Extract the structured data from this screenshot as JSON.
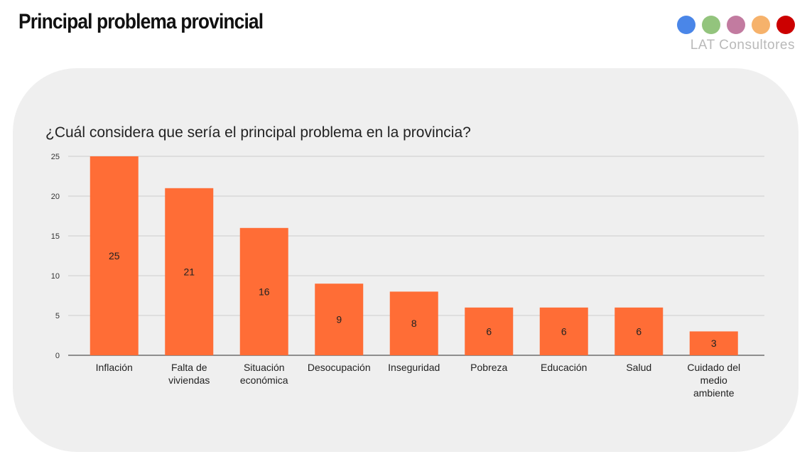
{
  "header": {
    "title": "Principal problema provincial"
  },
  "brand": {
    "name": "LAT Consultores",
    "dot_colors": [
      "#4a86e8",
      "#93c47d",
      "#c27ba0",
      "#f6b26b",
      "#cc0000"
    ]
  },
  "colors": {
    "bar": "#ff6d36",
    "grid": "#cccccc",
    "axis": "#555555",
    "panel": "#efefef"
  },
  "chart_data": {
    "type": "bar",
    "title": "¿Cuál considera que sería el principal problema en la provincia?",
    "xlabel": "",
    "ylabel": "",
    "categories": [
      "Inflación",
      "Falta de viviendas",
      "Situación económica",
      "Desocupación",
      "Inseguridad",
      "Pobreza",
      "Educación",
      "Salud",
      "Cuidado del medio ambiente"
    ],
    "category_lines": [
      [
        "Inflación"
      ],
      [
        "Falta de",
        "viviendas"
      ],
      [
        "Situación",
        "económica"
      ],
      [
        "Desocupación"
      ],
      [
        "Inseguridad"
      ],
      [
        "Pobreza"
      ],
      [
        "Educación"
      ],
      [
        "Salud"
      ],
      [
        "Cuidado del",
        "medio",
        "ambiente"
      ]
    ],
    "values": [
      25,
      21,
      16,
      9,
      8,
      6,
      6,
      6,
      3
    ],
    "ylim": [
      0,
      25
    ],
    "yticks": [
      0,
      5,
      10,
      15,
      20,
      25
    ],
    "grid": true,
    "legend": "none",
    "data_labels": true
  }
}
